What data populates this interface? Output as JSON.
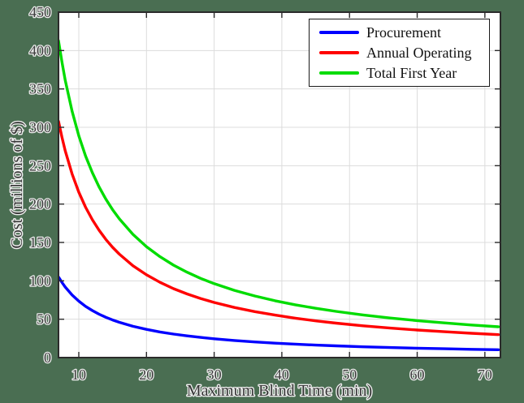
{
  "figure": {
    "background_color": "#4a6e52",
    "plot_background": "#ffffff",
    "grid_color": "#dcdcdc",
    "axis_color": "#2b2b2b",
    "tick_label_color": "#3d3d3d"
  },
  "chart_data": {
    "type": "line",
    "title": "",
    "xlabel": "Maximum Blind Time (min)",
    "ylabel": "Cost (millions of $)",
    "xlim": [
      7,
      72.3
    ],
    "ylim": [
      0,
      450
    ],
    "xticks": [
      10,
      20,
      30,
      40,
      50,
      60,
      70
    ],
    "yticks": [
      0,
      50,
      100,
      150,
      200,
      250,
      300,
      350,
      400,
      450
    ],
    "grid": true,
    "legend_position": "top-right",
    "x": [
      7,
      7.5,
      8,
      9,
      10,
      11,
      12,
      13,
      14,
      15,
      16,
      18,
      20,
      22,
      24,
      26,
      28,
      30,
      33,
      36,
      39,
      42,
      45,
      48,
      52,
      56,
      60,
      64,
      68,
      72
    ],
    "series": [
      {
        "name": "Procurement",
        "color": "#0000ff",
        "values": [
          105.0,
          98.0,
          91.9,
          81.7,
          73.5,
          66.8,
          61.3,
          56.5,
          52.5,
          49.0,
          45.9,
          40.8,
          36.8,
          33.4,
          30.6,
          28.3,
          26.3,
          24.5,
          22.3,
          20.4,
          18.8,
          17.5,
          16.3,
          15.3,
          14.1,
          13.1,
          12.3,
          11.5,
          10.8,
          10.2
        ]
      },
      {
        "name": "Annual Operating",
        "color": "#ff0000",
        "values": [
          307.9,
          287.3,
          269.4,
          239.4,
          215.5,
          195.9,
          179.6,
          165.8,
          153.9,
          143.7,
          134.7,
          119.7,
          107.8,
          98.0,
          89.8,
          82.9,
          77.0,
          71.8,
          65.3,
          59.9,
          55.3,
          51.3,
          47.9,
          44.9,
          41.4,
          38.5,
          35.9,
          33.7,
          31.7,
          29.9
        ]
      },
      {
        "name": "Total First Year",
        "color": "#00dc00",
        "values": [
          412.9,
          385.3,
          361.3,
          321.1,
          289.0,
          262.7,
          240.8,
          222.3,
          206.4,
          192.7,
          180.6,
          160.6,
          144.5,
          131.4,
          120.4,
          111.2,
          103.2,
          96.3,
          87.6,
          80.3,
          74.1,
          68.8,
          64.2,
          60.2,
          55.6,
          51.6,
          48.2,
          45.2,
          42.5,
          40.1
        ]
      }
    ]
  }
}
